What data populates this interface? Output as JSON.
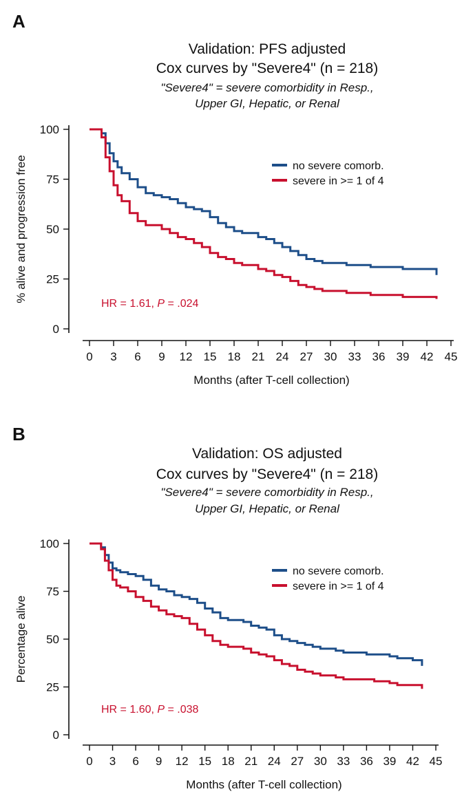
{
  "colors": {
    "no_severe": "#1d4e89",
    "severe": "#c8102e"
  },
  "chart_data": [
    {
      "panel": "A",
      "type": "line",
      "title": "Validation: PFS adjusted",
      "subtitle": "Cox curves by \"Severe4\" (n = 218)",
      "note_line1": "\"Severe4\" = severe comorbidity in Resp.,",
      "note_line2": "Upper GI, Hepatic, or Renal",
      "xlabel": "Months (after T-cell collection)",
      "ylabel": "% alive and progression free",
      "xlim": [
        0,
        45
      ],
      "ylim": [
        0,
        100
      ],
      "xticks": [
        0,
        3,
        6,
        9,
        12,
        15,
        18,
        21,
        24,
        27,
        30,
        33,
        36,
        39,
        42,
        45
      ],
      "yticks": [
        0,
        25,
        50,
        75,
        100
      ],
      "legend_position": "top-right",
      "annotation": {
        "hr_text": "HR = 1.61, ",
        "p_label": "P",
        "p_text": " = .024"
      },
      "series": [
        {
          "name": "no severe comorb.",
          "color_key": "no_severe",
          "x": [
            0,
            1,
            1.5,
            2,
            2.5,
            3,
            3.5,
            4,
            5,
            6,
            7,
            8,
            9,
            10,
            11,
            12,
            13,
            14,
            15,
            16,
            17,
            18,
            19,
            20,
            21,
            22,
            23,
            24,
            25,
            26,
            27,
            28,
            29,
            30,
            31,
            32,
            33,
            34,
            35,
            36,
            37,
            38,
            39,
            40,
            41,
            42,
            43.2
          ],
          "y": [
            100,
            100,
            98,
            93,
            88,
            84,
            81,
            78,
            75,
            71,
            68,
            67,
            66,
            65,
            63,
            61,
            60,
            59,
            56,
            53,
            51,
            49,
            48,
            48,
            46,
            45,
            43,
            41,
            39,
            37,
            35,
            34,
            33,
            33,
            33,
            32,
            32,
            32,
            31,
            31,
            31,
            31,
            30,
            30,
            30,
            30,
            27
          ]
        },
        {
          "name": "severe in >= 1 of 4",
          "color_key": "severe",
          "x": [
            0,
            1,
            1.5,
            2,
            2.5,
            3,
            3.5,
            4,
            5,
            6,
            7,
            8,
            9,
            10,
            11,
            12,
            13,
            14,
            15,
            16,
            17,
            18,
            19,
            20,
            21,
            22,
            23,
            24,
            25,
            26,
            27,
            28,
            29,
            30,
            31,
            32,
            33,
            34,
            35,
            36,
            37,
            38,
            39,
            40,
            41,
            42,
            43.2
          ],
          "y": [
            100,
            100,
            96,
            86,
            79,
            72,
            67,
            64,
            58,
            54,
            52,
            52,
            50,
            48,
            46,
            45,
            43,
            41,
            38,
            36,
            35,
            33,
            32,
            32,
            30,
            29,
            27,
            26,
            24,
            22,
            21,
            20,
            19,
            19,
            19,
            18,
            18,
            18,
            17,
            17,
            17,
            17,
            16,
            16,
            16,
            16,
            15
          ]
        }
      ]
    },
    {
      "panel": "B",
      "type": "line",
      "title": "Validation: OS adjusted",
      "subtitle": "Cox curves by \"Severe4\" (n = 218)",
      "note_line1": "\"Severe4\" = severe comorbidity in Resp.,",
      "note_line2": "Upper GI, Hepatic, or Renal",
      "xlabel": "Months (after T-cell collection)",
      "ylabel": "Percentage alive",
      "xlim": [
        0,
        45
      ],
      "ylim": [
        0,
        100
      ],
      "xticks": [
        0,
        3,
        6,
        9,
        12,
        15,
        18,
        21,
        24,
        27,
        30,
        33,
        36,
        39,
        42,
        45
      ],
      "yticks": [
        0,
        25,
        50,
        75,
        100
      ],
      "legend_position": "top-right",
      "annotation": {
        "hr_text": "HR = 1.60, ",
        "p_label": "P",
        "p_text": " = .038"
      },
      "series": [
        {
          "name": "no severe comorb.",
          "color_key": "no_severe",
          "x": [
            0,
            1,
            1.5,
            2,
            2.5,
            3,
            3.5,
            4,
            5,
            6,
            7,
            8,
            9,
            10,
            11,
            12,
            13,
            14,
            15,
            16,
            17,
            18,
            19,
            20,
            21,
            22,
            23,
            24,
            25,
            26,
            27,
            28,
            29,
            30,
            31,
            32,
            33,
            34,
            35,
            36,
            37,
            38,
            39,
            40,
            41,
            42,
            43.2
          ],
          "y": [
            100,
            100,
            98,
            94,
            90,
            87,
            86,
            85,
            84,
            83,
            81,
            78,
            76,
            75,
            73,
            72,
            71,
            69,
            66,
            64,
            61,
            60,
            60,
            59,
            57,
            56,
            55,
            52,
            50,
            49,
            48,
            47,
            46,
            45,
            45,
            44,
            43,
            43,
            43,
            42,
            42,
            42,
            41,
            40,
            40,
            39,
            36
          ]
        },
        {
          "name": "severe in >= 1 of 4",
          "color_key": "severe",
          "x": [
            0,
            1,
            1.5,
            2,
            2.5,
            3,
            3.5,
            4,
            5,
            6,
            7,
            8,
            9,
            10,
            11,
            12,
            13,
            14,
            15,
            16,
            17,
            18,
            19,
            20,
            21,
            22,
            23,
            24,
            25,
            26,
            27,
            28,
            29,
            30,
            31,
            32,
            33,
            34,
            35,
            36,
            37,
            38,
            39,
            40,
            41,
            42,
            43.2
          ],
          "y": [
            100,
            100,
            97,
            91,
            86,
            81,
            78,
            77,
            75,
            72,
            70,
            67,
            65,
            63,
            62,
            61,
            58,
            55,
            52,
            49,
            47,
            46,
            46,
            45,
            43,
            42,
            41,
            39,
            37,
            36,
            34,
            33,
            32,
            31,
            31,
            30,
            29,
            29,
            29,
            29,
            28,
            28,
            27,
            26,
            26,
            26,
            24
          ]
        }
      ]
    }
  ]
}
